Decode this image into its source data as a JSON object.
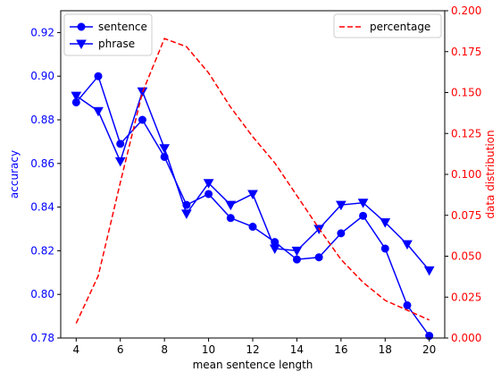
{
  "colors": {
    "left_axis": "#0000ff",
    "right_axis": "#ff0000",
    "frame": "#000000"
  },
  "chart_data": {
    "type": "line",
    "xlabel": "mean sentence length",
    "ylabel_left": "accuracy",
    "ylabel_right": "data distribution",
    "x_ticks": [
      4,
      6,
      8,
      10,
      12,
      14,
      16,
      18,
      20
    ],
    "y_left_ticks": [
      "0.78",
      "0.80",
      "0.82",
      "0.84",
      "0.86",
      "0.88",
      "0.90",
      "0.92"
    ],
    "y_right_ticks": [
      "0.000",
      "0.025",
      "0.050",
      "0.075",
      "0.100",
      "0.125",
      "0.150",
      "0.175",
      "0.200"
    ],
    "xlim": [
      3.3,
      20.7
    ],
    "ylim_left": [
      0.78,
      0.93
    ],
    "ylim_right": [
      0.0,
      0.2
    ],
    "grid": false,
    "legend_left_position": "upper-left",
    "legend_right_position": "upper-right",
    "series": [
      {
        "name": "sentence",
        "axis": "left",
        "color": "#0000ff",
        "line_style": "solid",
        "marker": "circle",
        "x": [
          4,
          5,
          6,
          7,
          8,
          9,
          10,
          11,
          12,
          13,
          14,
          15,
          16,
          17,
          18,
          19,
          20
        ],
        "y": [
          0.888,
          0.9,
          0.869,
          0.88,
          0.863,
          0.841,
          0.846,
          0.835,
          0.831,
          0.824,
          0.816,
          0.817,
          0.828,
          0.836,
          0.821,
          0.795,
          0.781
        ]
      },
      {
        "name": "phrase",
        "axis": "left",
        "color": "#0000ff",
        "line_style": "solid",
        "marker": "triangle-down",
        "x": [
          4,
          5,
          6,
          7,
          8,
          9,
          10,
          11,
          12,
          13,
          14,
          15,
          16,
          17,
          18,
          19,
          20
        ],
        "y": [
          0.891,
          0.884,
          0.861,
          0.893,
          0.867,
          0.837,
          0.851,
          0.841,
          0.846,
          0.821,
          0.82,
          0.83,
          0.841,
          0.842,
          0.833,
          0.823,
          0.811
        ]
      },
      {
        "name": "percentage",
        "axis": "right",
        "color": "#ff0000",
        "line_style": "dashed",
        "marker": "none",
        "x": [
          4,
          5,
          6,
          7,
          8,
          9,
          10,
          11,
          12,
          13,
          14,
          15,
          16,
          17,
          18,
          19,
          20
        ],
        "y": [
          0.009,
          0.038,
          0.095,
          0.15,
          0.183,
          0.178,
          0.162,
          0.141,
          0.123,
          0.107,
          0.087,
          0.067,
          0.048,
          0.034,
          0.023,
          0.017,
          0.011
        ]
      }
    ]
  }
}
